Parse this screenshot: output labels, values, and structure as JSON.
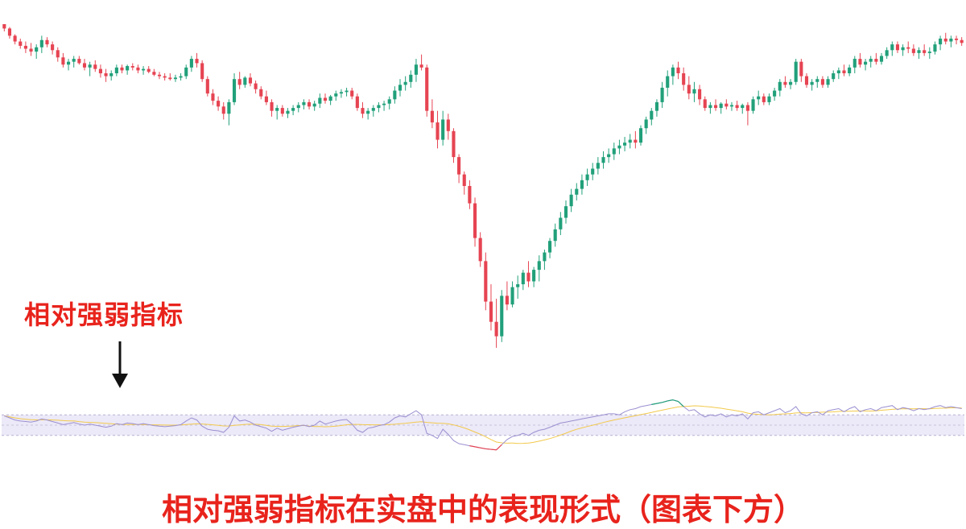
{
  "chart_data": {
    "type": "candlestick",
    "title": "",
    "xlabel": "",
    "ylabel": "",
    "colors": {
      "up": "#21a07a",
      "down": "#e64452",
      "rsi_line": "#9b8fd0",
      "rsi_ma": "#f2c94c",
      "rsi_band": "#ece9f8"
    },
    "ohlc": [
      [
        100,
        100,
        95,
        97
      ],
      [
        97,
        98,
        90,
        92
      ],
      [
        92,
        93,
        86,
        88
      ],
      [
        88,
        90,
        83,
        85
      ],
      [
        85,
        88,
        80,
        83
      ],
      [
        83,
        87,
        78,
        81
      ],
      [
        81,
        86,
        76,
        84
      ],
      [
        84,
        92,
        80,
        89
      ],
      [
        89,
        91,
        84,
        86
      ],
      [
        86,
        88,
        79,
        82
      ],
      [
        82,
        84,
        74,
        77
      ],
      [
        77,
        80,
        70,
        72
      ],
      [
        72,
        76,
        68,
        74
      ],
      [
        74,
        78,
        70,
        76
      ],
      [
        76,
        78,
        72,
        73
      ],
      [
        73,
        76,
        68,
        70
      ],
      [
        70,
        74,
        64,
        72
      ],
      [
        72,
        75,
        67,
        69
      ],
      [
        69,
        72,
        63,
        66
      ],
      [
        66,
        69,
        60,
        64
      ],
      [
        64,
        68,
        61,
        66
      ],
      [
        66,
        72,
        64,
        70
      ],
      [
        70,
        72,
        66,
        68
      ],
      [
        68,
        72,
        65,
        71
      ],
      [
        71,
        73,
        68,
        70
      ],
      [
        70,
        72,
        66,
        68
      ],
      [
        68,
        71,
        65,
        69
      ],
      [
        69,
        71,
        66,
        67
      ],
      [
        67,
        69,
        64,
        65
      ],
      [
        65,
        67,
        62,
        64
      ],
      [
        64,
        66,
        61,
        63
      ],
      [
        63,
        66,
        61,
        62
      ],
      [
        62,
        65,
        60,
        63
      ],
      [
        63,
        66,
        61,
        64
      ],
      [
        64,
        72,
        62,
        70
      ],
      [
        70,
        78,
        67,
        76
      ],
      [
        76,
        80,
        70,
        73
      ],
      [
        73,
        75,
        60,
        62
      ],
      [
        62,
        64,
        50,
        52
      ],
      [
        52,
        55,
        44,
        47
      ],
      [
        47,
        50,
        40,
        43
      ],
      [
        43,
        46,
        34,
        38
      ],
      [
        38,
        48,
        30,
        46
      ],
      [
        46,
        66,
        44,
        62
      ],
      [
        62,
        67,
        55,
        58
      ],
      [
        58,
        64,
        56,
        63
      ],
      [
        63,
        66,
        57,
        59
      ],
      [
        59,
        61,
        52,
        55
      ],
      [
        55,
        57,
        48,
        50
      ],
      [
        50,
        54,
        44,
        46
      ],
      [
        46,
        48,
        36,
        40
      ],
      [
        40,
        44,
        34,
        42
      ],
      [
        42,
        44,
        36,
        38
      ],
      [
        38,
        42,
        35,
        40
      ],
      [
        40,
        44,
        37,
        42
      ],
      [
        42,
        46,
        39,
        44
      ],
      [
        44,
        48,
        41,
        46
      ],
      [
        46,
        48,
        41,
        43
      ],
      [
        43,
        47,
        40,
        45
      ],
      [
        45,
        52,
        42,
        49
      ],
      [
        49,
        52,
        45,
        47
      ],
      [
        47,
        51,
        44,
        50
      ],
      [
        50,
        54,
        47,
        52
      ],
      [
        52,
        55,
        49,
        53
      ],
      [
        53,
        56,
        50,
        54
      ],
      [
        54,
        56,
        48,
        50
      ],
      [
        50,
        52,
        40,
        42
      ],
      [
        42,
        46,
        35,
        38
      ],
      [
        38,
        42,
        34,
        40
      ],
      [
        40,
        44,
        36,
        42
      ],
      [
        42,
        46,
        39,
        44
      ],
      [
        44,
        47,
        40,
        45
      ],
      [
        45,
        50,
        41,
        48
      ],
      [
        48,
        57,
        45,
        54
      ],
      [
        54,
        62,
        50,
        58
      ],
      [
        58,
        64,
        54,
        60
      ],
      [
        60,
        68,
        56,
        65
      ],
      [
        65,
        76,
        60,
        72
      ],
      [
        72,
        79,
        68,
        70
      ],
      [
        70,
        72,
        36,
        40
      ],
      [
        40,
        48,
        28,
        32
      ],
      [
        32,
        40,
        14,
        20
      ],
      [
        20,
        40,
        16,
        34
      ],
      [
        34,
        38,
        20,
        26
      ],
      [
        26,
        28,
        4,
        8
      ],
      [
        8,
        10,
        -10,
        -4
      ],
      [
        -4,
        -2,
        -18,
        -12
      ],
      [
        -12,
        -8,
        -28,
        -24
      ],
      [
        -24,
        -20,
        -54,
        -48
      ],
      [
        -48,
        -44,
        -68,
        -64
      ],
      [
        -64,
        -58,
        -98,
        -92
      ],
      [
        -92,
        -80,
        -112,
        -106
      ],
      [
        -106,
        -90,
        -124,
        -116
      ],
      [
        -116,
        -84,
        -120,
        -88
      ],
      [
        -88,
        -78,
        -98,
        -94
      ],
      [
        -94,
        -78,
        -96,
        -82
      ],
      [
        -82,
        -74,
        -90,
        -80
      ],
      [
        -80,
        -70,
        -84,
        -72
      ],
      [
        -72,
        -64,
        -82,
        -78
      ],
      [
        -78,
        -68,
        -82,
        -70
      ],
      [
        -70,
        -60,
        -78,
        -64
      ],
      [
        -64,
        -56,
        -70,
        -58
      ],
      [
        -58,
        -48,
        -62,
        -50
      ],
      [
        -50,
        -38,
        -54,
        -42
      ],
      [
        -42,
        -30,
        -46,
        -34
      ],
      [
        -34,
        -22,
        -38,
        -26
      ],
      [
        -26,
        -14,
        -30,
        -18
      ],
      [
        -18,
        -10,
        -22,
        -14
      ],
      [
        -14,
        -4,
        -18,
        -8
      ],
      [
        -8,
        0,
        -12,
        -4
      ],
      [
        -4,
        4,
        -8,
        0
      ],
      [
        0,
        8,
        -4,
        4
      ],
      [
        4,
        12,
        0,
        8
      ],
      [
        8,
        14,
        4,
        10
      ],
      [
        10,
        18,
        6,
        14
      ],
      [
        14,
        20,
        10,
        16
      ],
      [
        16,
        22,
        12,
        18
      ],
      [
        18,
        24,
        14,
        20
      ],
      [
        20,
        26,
        14,
        18
      ],
      [
        18,
        30,
        16,
        28
      ],
      [
        28,
        36,
        24,
        34
      ],
      [
        34,
        42,
        30,
        40
      ],
      [
        40,
        48,
        36,
        46
      ],
      [
        46,
        60,
        42,
        56
      ],
      [
        56,
        68,
        50,
        64
      ],
      [
        64,
        72,
        58,
        70
      ],
      [
        70,
        74,
        62,
        66
      ],
      [
        66,
        70,
        54,
        58
      ],
      [
        58,
        64,
        48,
        52
      ],
      [
        52,
        60,
        46,
        55
      ],
      [
        55,
        58,
        44,
        48
      ],
      [
        48,
        50,
        40,
        42
      ],
      [
        42,
        46,
        38,
        44
      ],
      [
        44,
        48,
        40,
        42
      ],
      [
        42,
        46,
        38,
        45
      ],
      [
        45,
        48,
        41,
        43
      ],
      [
        43,
        46,
        40,
        44
      ],
      [
        44,
        47,
        40,
        42
      ],
      [
        42,
        45,
        38,
        44
      ],
      [
        44,
        46,
        30,
        40
      ],
      [
        40,
        50,
        38,
        48
      ],
      [
        48,
        54,
        44,
        50
      ],
      [
        50,
        52,
        44,
        46
      ],
      [
        46,
        52,
        44,
        50
      ],
      [
        50,
        56,
        47,
        54
      ],
      [
        54,
        62,
        50,
        60
      ],
      [
        60,
        64,
        56,
        58
      ],
      [
        58,
        62,
        55,
        60
      ],
      [
        60,
        76,
        58,
        74
      ],
      [
        74,
        76,
        60,
        64
      ],
      [
        64,
        66,
        56,
        58
      ],
      [
        58,
        62,
        54,
        60
      ],
      [
        60,
        64,
        56,
        62
      ],
      [
        62,
        64,
        56,
        58
      ],
      [
        58,
        64,
        56,
        62
      ],
      [
        62,
        68,
        60,
        66
      ],
      [
        66,
        70,
        62,
        68
      ],
      [
        68,
        72,
        64,
        66
      ],
      [
        66,
        72,
        64,
        70
      ],
      [
        70,
        78,
        66,
        76
      ],
      [
        76,
        80,
        70,
        72
      ],
      [
        72,
        76,
        68,
        74
      ],
      [
        74,
        78,
        70,
        76
      ],
      [
        76,
        80,
        72,
        74
      ],
      [
        74,
        80,
        72,
        78
      ],
      [
        78,
        84,
        76,
        82
      ],
      [
        82,
        88,
        78,
        86
      ],
      [
        86,
        88,
        80,
        82
      ],
      [
        82,
        86,
        78,
        84
      ],
      [
        84,
        88,
        80,
        83
      ],
      [
        83,
        86,
        78,
        80
      ],
      [
        80,
        84,
        76,
        82
      ],
      [
        82,
        86,
        78,
        80
      ],
      [
        80,
        84,
        76,
        81
      ],
      [
        81,
        88,
        79,
        86
      ],
      [
        86,
        92,
        82,
        90
      ],
      [
        90,
        94,
        86,
        88
      ],
      [
        88,
        92,
        84,
        90
      ],
      [
        90,
        92,
        86,
        89
      ],
      [
        89,
        91,
        85,
        87
      ]
    ],
    "rsi": [
      68,
      64,
      60,
      58,
      57,
      56,
      58,
      62,
      60,
      57,
      54,
      51,
      53,
      55,
      52,
      50,
      52,
      50,
      48,
      46,
      48,
      53,
      51,
      54,
      53,
      51,
      53,
      51,
      49,
      48,
      47,
      48,
      49,
      51,
      58,
      64,
      60,
      48,
      42,
      40,
      39,
      36,
      46,
      68,
      58,
      60,
      56,
      50,
      47,
      44,
      38,
      44,
      40,
      43,
      46,
      48,
      50,
      47,
      50,
      58,
      52,
      55,
      58,
      60,
      61,
      52,
      40,
      36,
      44,
      46,
      49,
      51,
      56,
      64,
      68,
      66,
      72,
      78,
      70,
      34,
      30,
      24,
      42,
      32,
      20,
      14,
      12,
      10,
      8,
      6,
      4,
      3,
      2,
      12,
      22,
      28,
      30,
      34,
      30,
      36,
      40,
      42,
      46,
      50,
      54,
      56,
      58,
      60,
      62,
      64,
      66,
      68,
      70,
      72,
      72,
      70,
      76,
      80,
      82,
      86,
      88,
      90,
      92,
      94,
      97,
      99,
      96,
      86,
      78,
      80,
      72,
      66,
      70,
      68,
      72,
      66,
      70,
      68,
      72,
      62,
      74,
      76,
      70,
      74,
      78,
      82,
      74,
      78,
      86,
      72,
      68,
      74,
      76,
      70,
      78,
      80,
      82,
      76,
      82,
      86,
      76,
      80,
      82,
      78,
      84,
      86,
      88,
      80,
      84,
      82,
      78,
      82,
      80,
      82,
      86,
      88,
      84,
      86,
      84,
      82
    ],
    "rsi_levels": {
      "upper": 70,
      "lower": 30,
      "mid": 50
    }
  },
  "labels": {
    "indicator_label": "相对强弱指标",
    "caption": "相对强弱指标在实盘中的表现形式（图表下方）"
  }
}
